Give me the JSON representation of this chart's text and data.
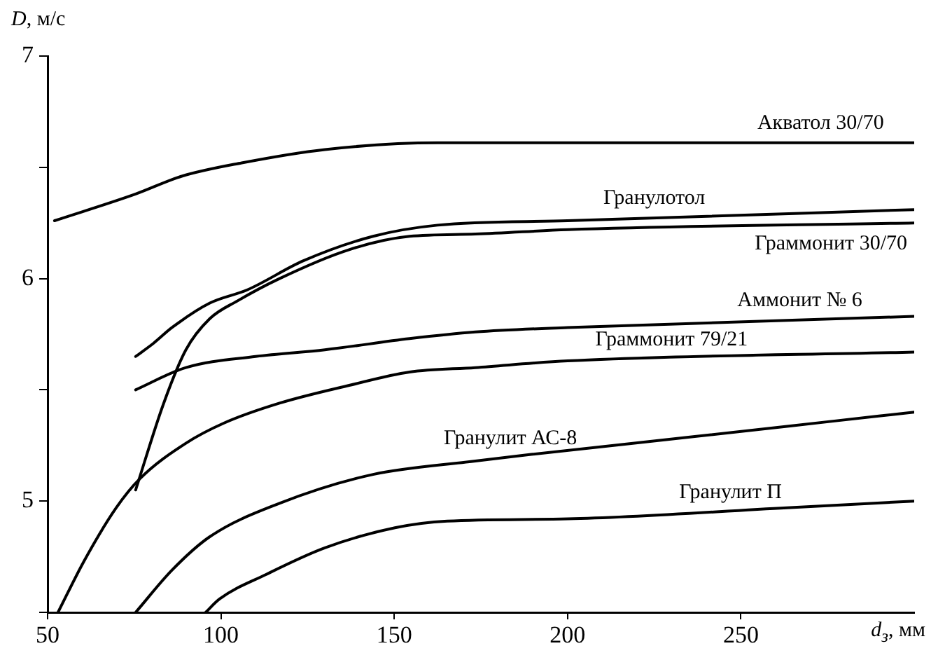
{
  "chart_data": {
    "type": "line",
    "xlabel": "d$_{з}$, мм",
    "ylabel": "D, м/с",
    "marker": "none",
    "xlim": [
      50,
      300
    ],
    "ylim": [
      4.5,
      7
    ],
    "xticks": [
      50,
      100,
      150,
      200,
      250
    ],
    "yticks": [
      {
        "value": 4.5,
        "label": null
      },
      5,
      {
        "value": 5.5,
        "label": null
      },
      6,
      {
        "value": 6.5,
        "label": null
      },
      7
    ],
    "series": [
      {
        "name": "Акватол 30/70",
        "color": "#000000",
        "x": [
          52,
          75.4,
          88.7,
          106,
          130,
          162.5,
          200,
          300
        ],
        "values": [
          6.26,
          6.38,
          6.46,
          6.52,
          6.58,
          6.61,
          6.61,
          6.61
        ]
      },
      {
        "name": "Гранулотол",
        "color": "#000000",
        "x": [
          75.4,
          80.6,
          85.9,
          96.8,
          107.7,
          123.8,
          143.9,
          162.5,
          200,
          300
        ],
        "values": [
          5.65,
          5.71,
          5.78,
          5.89,
          5.95,
          6.08,
          6.19,
          6.24,
          6.26,
          6.31
        ]
      },
      {
        "name": "Граммонит 30/70",
        "color": "#000000",
        "x": [
          75.4,
          83.5,
          89.9,
          96.8,
          104.8,
          116.9,
          137,
          154.4,
          173.4,
          200,
          300
        ],
        "values": [
          5.05,
          5.44,
          5.68,
          5.82,
          5.9,
          6.0,
          6.13,
          6.19,
          6.2,
          6.22,
          6.25
        ]
      },
      {
        "name": "Аммонит № 6",
        "color": "#000000",
        "x": [
          75.4,
          89.9,
          110,
          130,
          154.4,
          173.4,
          200,
          300
        ],
        "values": [
          5.5,
          5.6,
          5.65,
          5.68,
          5.73,
          5.76,
          5.78,
          5.83
        ]
      },
      {
        "name": "Граммонит 79/21",
        "color": "#000000",
        "x": [
          53,
          60.5,
          69.8,
          76.6,
          89.9,
          100.8,
          116.9,
          137,
          154.4,
          173.4,
          200,
          300
        ],
        "values": [
          4.5,
          4.73,
          4.97,
          5.1,
          5.26,
          5.35,
          5.44,
          5.52,
          5.58,
          5.6,
          5.63,
          5.67
        ]
      },
      {
        "name": "Гранулит АС-8",
        "color": "#000000",
        "x": [
          75.4,
          85.9,
          96.8,
          116.9,
          143.9,
          173.4,
          189.5,
          236.7,
          277,
          300
        ],
        "values": [
          4.5,
          4.69,
          4.84,
          4.99,
          5.12,
          5.18,
          5.21,
          5.29,
          5.36,
          5.4
        ]
      },
      {
        "name": "Гранулит П",
        "color": "#000000",
        "x": [
          95.6,
          99.6,
          113,
          130,
          150.2,
          165.3,
          200,
          263.3,
          300
        ],
        "values": [
          4.5,
          4.56,
          4.67,
          4.79,
          4.88,
          4.91,
          4.92,
          4.97,
          5.0
        ]
      }
    ]
  }
}
